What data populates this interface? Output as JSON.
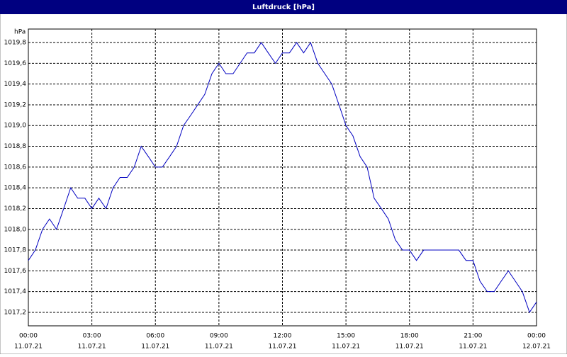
{
  "chart_data": {
    "type": "line",
    "title": "Luftdruck [hPa]",
    "y_unit": "hPa",
    "x": [
      0,
      0.33,
      0.67,
      1,
      1.33,
      1.67,
      2,
      2.33,
      2.67,
      3,
      3.33,
      3.67,
      4,
      4.33,
      4.67,
      5,
      5.33,
      5.67,
      6,
      6.33,
      6.67,
      7,
      7.33,
      7.67,
      8,
      8.33,
      8.67,
      9,
      9.33,
      9.67,
      10,
      10.33,
      10.67,
      11,
      11.33,
      11.67,
      12,
      12.33,
      12.67,
      13,
      13.33,
      13.67,
      14,
      14.33,
      14.67,
      15,
      15.33,
      15.67,
      16,
      16.33,
      16.67,
      17,
      17.33,
      17.67,
      18,
      18.33,
      18.67,
      19,
      19.33,
      19.67,
      20,
      20.33,
      20.67,
      21,
      21.33,
      21.67,
      22,
      22.33,
      22.67,
      23,
      23.33,
      23.67,
      24
    ],
    "series": [
      {
        "name": "Luftdruck",
        "color": "#0000c0",
        "values": [
          1017.7,
          1017.8,
          1018.0,
          1018.1,
          1018.0,
          1018.2,
          1018.4,
          1018.3,
          1018.3,
          1018.2,
          1018.3,
          1018.2,
          1018.4,
          1018.5,
          1018.5,
          1018.6,
          1018.8,
          1018.7,
          1018.6,
          1018.6,
          1018.7,
          1018.8,
          1019.0,
          1019.1,
          1019.2,
          1019.3,
          1019.5,
          1019.6,
          1019.5,
          1019.5,
          1019.6,
          1019.7,
          1019.7,
          1019.8,
          1019.7,
          1019.6,
          1019.7,
          1019.7,
          1019.8,
          1019.7,
          1019.8,
          1019.6,
          1019.5,
          1019.4,
          1019.2,
          1019.0,
          1018.9,
          1018.7,
          1018.6,
          1018.3,
          1018.2,
          1018.1,
          1017.9,
          1017.8,
          1017.8,
          1017.7,
          1017.8,
          1017.8,
          1017.8,
          1017.8,
          1017.8,
          1017.8,
          1017.7,
          1017.7,
          1017.5,
          1017.4,
          1017.4,
          1017.5,
          1017.6,
          1017.5,
          1017.4,
          1017.2,
          1017.3
        ]
      }
    ],
    "xlim": [
      0,
      24
    ],
    "xticks": [
      {
        "value": 0,
        "label": "00:00",
        "date": "11.07.21"
      },
      {
        "value": 3,
        "label": "03:00",
        "date": "11.07.21"
      },
      {
        "value": 6,
        "label": "06:00",
        "date": "11.07.21"
      },
      {
        "value": 9,
        "label": "09:00",
        "date": "11.07.21"
      },
      {
        "value": 12,
        "label": "12:00",
        "date": "11.07.21"
      },
      {
        "value": 15,
        "label": "15:00",
        "date": "11.07.21"
      },
      {
        "value": 18,
        "label": "18:00",
        "date": "11.07.21"
      },
      {
        "value": 21,
        "label": "21:00",
        "date": "11.07.21"
      },
      {
        "value": 24,
        "label": "00:00",
        "date": "12.07.21"
      }
    ],
    "ylim": [
      1017.07,
      1019.93
    ],
    "yticks": [
      {
        "value": 1017.2,
        "label": "1017,2"
      },
      {
        "value": 1017.4,
        "label": "1017,4"
      },
      {
        "value": 1017.6,
        "label": "1017,6"
      },
      {
        "value": 1017.8,
        "label": "1017,8"
      },
      {
        "value": 1018.0,
        "label": "1018,0"
      },
      {
        "value": 1018.2,
        "label": "1018,2"
      },
      {
        "value": 1018.4,
        "label": "1018,4"
      },
      {
        "value": 1018.6,
        "label": "1018,6"
      },
      {
        "value": 1018.8,
        "label": "1018,8"
      },
      {
        "value": 1019.0,
        "label": "1019,0"
      },
      {
        "value": 1019.2,
        "label": "1019,2"
      },
      {
        "value": 1019.4,
        "label": "1019,4"
      },
      {
        "value": 1019.6,
        "label": "1019,6"
      },
      {
        "value": 1019.8,
        "label": "1019,8"
      }
    ],
    "grid": true
  }
}
